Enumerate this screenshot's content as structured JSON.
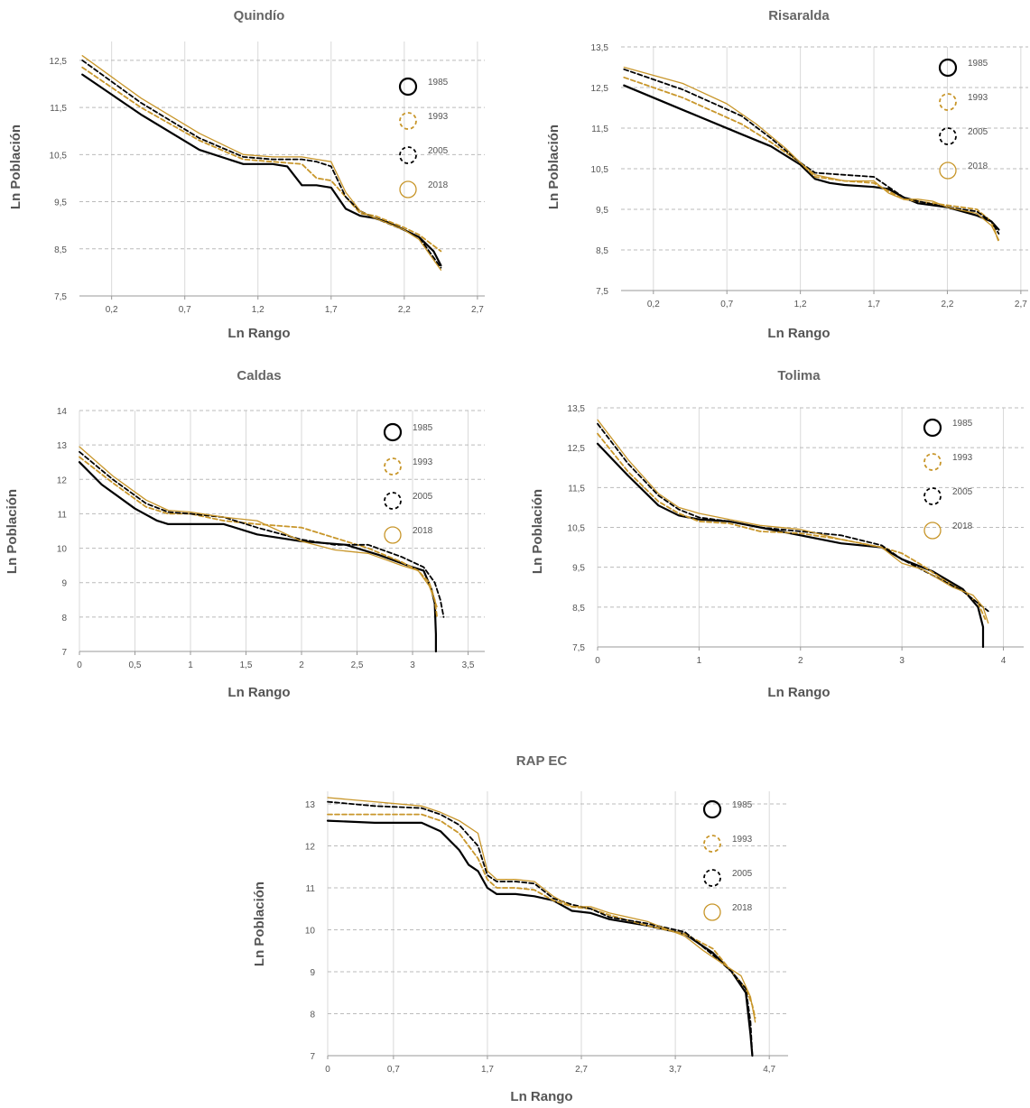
{
  "colors": {
    "s1985": "#000000",
    "s1993": "#c8962a",
    "s2005": "#000000",
    "s2018": "#c8962a",
    "grid_h": "#bbbbbb",
    "grid_v": "#d9d9d9",
    "axis": "#999999"
  },
  "chart_data": [
    {
      "type": "line",
      "title": "Quindío",
      "xlabel": "Ln Rango",
      "ylabel": "Ln Población",
      "xlim": [
        -0.02,
        2.75
      ],
      "ylim": [
        7.5,
        12.9
      ],
      "xticks": [
        0.2,
        0.7,
        1.2,
        1.7,
        2.2,
        2.7
      ],
      "xtick_labels": [
        "0,2",
        "0,7",
        "1,2",
        "1,7",
        "2,2",
        "2,7"
      ],
      "yticks": [
        7.5,
        8.5,
        9.5,
        10.5,
        11.5,
        12.5
      ],
      "ytick_labels": [
        "7,5",
        "8,5",
        "9,5",
        "10,5",
        "11,5",
        "12,5"
      ],
      "legend": "right-inside",
      "grid": true,
      "series": [
        {
          "name": "1985",
          "style": "solid-thick",
          "x": [
            0,
            0.4,
            0.8,
            1.1,
            1.3,
            1.4,
            1.5,
            1.6,
            1.7,
            1.8,
            1.9,
            2.0,
            2.1,
            2.2,
            2.3,
            2.4,
            2.45
          ],
          "y": [
            12.2,
            11.35,
            10.6,
            10.3,
            10.3,
            10.25,
            9.85,
            9.85,
            9.8,
            9.35,
            9.2,
            9.15,
            9.05,
            8.9,
            8.75,
            8.45,
            8.15
          ]
        },
        {
          "name": "1993",
          "style": "dashed",
          "x": [
            0,
            0.4,
            0.8,
            1.1,
            1.3,
            1.5,
            1.6,
            1.7,
            1.8,
            1.9,
            2.0,
            2.2,
            2.3,
            2.45
          ],
          "y": [
            12.35,
            11.5,
            10.8,
            10.4,
            10.35,
            10.3,
            10.0,
            9.95,
            9.6,
            9.25,
            9.2,
            8.95,
            8.8,
            8.45
          ]
        },
        {
          "name": "2005",
          "style": "dashed",
          "x": [
            0,
            0.4,
            0.8,
            1.1,
            1.3,
            1.5,
            1.6,
            1.7,
            1.8,
            1.9,
            2.0,
            2.2,
            2.3,
            2.45
          ],
          "y": [
            12.5,
            11.6,
            10.85,
            10.45,
            10.4,
            10.4,
            10.35,
            10.25,
            9.6,
            9.3,
            9.15,
            8.9,
            8.75,
            8.1
          ]
        },
        {
          "name": "2018",
          "style": "solid-thin",
          "x": [
            0,
            0.4,
            0.8,
            1.1,
            1.3,
            1.5,
            1.6,
            1.7,
            1.8,
            1.9,
            2.0,
            2.2,
            2.3,
            2.45
          ],
          "y": [
            12.6,
            11.7,
            10.95,
            10.5,
            10.45,
            10.45,
            10.4,
            10.35,
            9.7,
            9.3,
            9.15,
            8.9,
            8.7,
            8.05
          ]
        }
      ]
    },
    {
      "type": "line",
      "title": "Risaralda",
      "xlabel": "Ln Rango",
      "ylabel": "Ln Población",
      "xlim": [
        -0.02,
        2.75
      ],
      "ylim": [
        7.5,
        13.5
      ],
      "xticks": [
        0.2,
        0.7,
        1.2,
        1.7,
        2.2,
        2.7
      ],
      "xtick_labels": [
        "0,2",
        "0,7",
        "1,2",
        "1,7",
        "2,2",
        "2,7"
      ],
      "yticks": [
        7.5,
        8.5,
        9.5,
        10.5,
        11.5,
        12.5,
        13.5
      ],
      "ytick_labels": [
        "7,5",
        "8,5",
        "9,5",
        "10,5",
        "11,5",
        "12,5",
        "13,5"
      ],
      "legend": "top-right",
      "grid": true,
      "series": [
        {
          "name": "1985",
          "style": "solid-thick",
          "x": [
            0,
            0.4,
            0.8,
            1.0,
            1.2,
            1.3,
            1.4,
            1.5,
            1.7,
            1.8,
            1.9,
            2.0,
            2.2,
            2.4,
            2.5,
            2.55
          ],
          "y": [
            12.55,
            11.95,
            11.35,
            11.05,
            10.6,
            10.25,
            10.15,
            10.1,
            10.05,
            10.0,
            9.8,
            9.65,
            9.55,
            9.35,
            9.2,
            9.0
          ]
        },
        {
          "name": "1993",
          "style": "dashed",
          "x": [
            0,
            0.4,
            0.8,
            1.0,
            1.2,
            1.3,
            1.5,
            1.7,
            1.8,
            1.9,
            2.0,
            2.2,
            2.4,
            2.5,
            2.55
          ],
          "y": [
            12.75,
            12.25,
            11.6,
            11.15,
            10.65,
            10.3,
            10.2,
            10.15,
            9.95,
            9.75,
            9.7,
            9.6,
            9.5,
            9.2,
            8.7
          ]
        },
        {
          "name": "2005",
          "style": "dashed",
          "x": [
            0,
            0.4,
            0.8,
            1.0,
            1.2,
            1.3,
            1.5,
            1.7,
            1.8,
            1.9,
            2.0,
            2.2,
            2.4,
            2.5,
            2.55
          ],
          "y": [
            12.95,
            12.45,
            11.8,
            11.25,
            10.65,
            10.4,
            10.35,
            10.3,
            10.05,
            9.8,
            9.7,
            9.55,
            9.45,
            9.2,
            8.9
          ]
        },
        {
          "name": "2018",
          "style": "solid-thin",
          "x": [
            0,
            0.4,
            0.7,
            0.9,
            1.1,
            1.2,
            1.3,
            1.5,
            1.7,
            1.8,
            1.9,
            2.0,
            2.1,
            2.2,
            2.4,
            2.5,
            2.55
          ],
          "y": [
            13.0,
            12.6,
            12.1,
            11.6,
            11.0,
            10.65,
            10.35,
            10.2,
            10.2,
            9.9,
            9.75,
            9.75,
            9.7,
            9.55,
            9.4,
            9.1,
            8.75
          ]
        }
      ]
    },
    {
      "type": "line",
      "title": "Caldas",
      "xlabel": "Ln Rango",
      "ylabel": "Ln Población",
      "xlim": [
        0,
        3.65
      ],
      "ylim": [
        7,
        14
      ],
      "xticks": [
        0,
        0.5,
        1,
        1.5,
        2,
        2.5,
        3,
        3.5
      ],
      "xtick_labels": [
        "0",
        "0,5",
        "1",
        "1,5",
        "2",
        "2,5",
        "3",
        "3,5"
      ],
      "yticks": [
        7,
        8,
        9,
        10,
        11,
        12,
        13,
        14
      ],
      "ytick_labels": [
        "7",
        "8",
        "9",
        "10",
        "11",
        "12",
        "13",
        "14"
      ],
      "legend": "right-inside",
      "grid": true,
      "series": [
        {
          "name": "1985",
          "style": "solid-thick",
          "x": [
            0,
            0.2,
            0.5,
            0.7,
            0.8,
            1.0,
            1.3,
            1.6,
            2.0,
            2.4,
            2.7,
            3.0,
            3.1,
            3.17,
            3.2,
            3.21,
            3.21
          ],
          "y": [
            12.5,
            11.85,
            11.15,
            10.8,
            10.7,
            10.7,
            10.7,
            10.4,
            10.2,
            10.1,
            9.8,
            9.45,
            9.35,
            8.8,
            8.4,
            7.5,
            7.0
          ]
        },
        {
          "name": "1993",
          "style": "dashed",
          "x": [
            0,
            0.3,
            0.6,
            0.8,
            1.0,
            1.3,
            1.6,
            2.0,
            2.3,
            2.6,
            2.9,
            3.05,
            3.15,
            3.2,
            3.22
          ],
          "y": [
            12.65,
            11.9,
            11.2,
            11.0,
            11.0,
            10.8,
            10.7,
            10.6,
            10.3,
            10.0,
            9.6,
            9.35,
            9.0,
            8.5,
            8.0
          ]
        },
        {
          "name": "2005",
          "style": "dashed",
          "x": [
            0,
            0.3,
            0.6,
            0.8,
            1.0,
            1.3,
            1.6,
            2.0,
            2.3,
            2.6,
            2.9,
            3.1,
            3.2,
            3.25,
            3.28
          ],
          "y": [
            12.8,
            12.0,
            11.3,
            11.05,
            11.0,
            10.9,
            10.6,
            10.25,
            10.1,
            10.1,
            9.75,
            9.45,
            9.0,
            8.5,
            8.0
          ]
        },
        {
          "name": "2018",
          "style": "solid-thin",
          "x": [
            0,
            0.3,
            0.6,
            0.8,
            1.0,
            1.3,
            1.6,
            2.0,
            2.3,
            2.6,
            2.9,
            3.05,
            3.15,
            3.22
          ],
          "y": [
            12.95,
            12.1,
            11.4,
            11.1,
            11.05,
            10.9,
            10.8,
            10.2,
            9.95,
            9.85,
            9.5,
            9.35,
            8.9,
            8.3
          ]
        }
      ]
    },
    {
      "type": "line",
      "title": "Tolima",
      "xlabel": "Ln Rango",
      "ylabel": "Ln Población",
      "xlim": [
        0,
        4.2
      ],
      "ylim": [
        7.5,
        13.5
      ],
      "xticks": [
        0,
        1,
        2,
        3,
        4
      ],
      "xtick_labels": [
        "0",
        "1",
        "2",
        "3",
        "4"
      ],
      "yticks": [
        7.5,
        8.5,
        9.5,
        10.5,
        11.5,
        12.5,
        13.5
      ],
      "ytick_labels": [
        "7,5",
        "8,5",
        "9,5",
        "10,5",
        "11,5",
        "12,5",
        "13,5"
      ],
      "legend": "right-inside",
      "grid": true,
      "series": [
        {
          "name": "1985",
          "style": "solid-thick",
          "x": [
            0,
            0.3,
            0.6,
            0.8,
            1.0,
            1.3,
            1.6,
            2.0,
            2.4,
            2.8,
            3.0,
            3.3,
            3.6,
            3.75,
            3.8,
            3.8
          ],
          "y": [
            12.6,
            11.8,
            11.05,
            10.8,
            10.7,
            10.65,
            10.5,
            10.3,
            10.1,
            10.0,
            9.7,
            9.4,
            8.95,
            8.5,
            8.0,
            7.5
          ]
        },
        {
          "name": "1993",
          "style": "dashed",
          "x": [
            0,
            0.3,
            0.6,
            0.8,
            1.0,
            1.3,
            1.6,
            2.0,
            2.4,
            2.8,
            3.0,
            3.2,
            3.4,
            3.6,
            3.75,
            3.82
          ],
          "y": [
            12.85,
            11.9,
            11.15,
            10.85,
            10.65,
            10.6,
            10.4,
            10.35,
            10.2,
            10.0,
            9.85,
            9.55,
            9.2,
            8.9,
            8.6,
            8.2
          ]
        },
        {
          "name": "2005",
          "style": "dashed",
          "x": [
            0,
            0.3,
            0.6,
            0.8,
            1.0,
            1.3,
            1.6,
            2.0,
            2.4,
            2.8,
            3.0,
            3.3,
            3.6,
            3.75,
            3.85
          ],
          "y": [
            13.1,
            12.1,
            11.3,
            10.95,
            10.75,
            10.65,
            10.5,
            10.4,
            10.3,
            10.05,
            9.7,
            9.3,
            8.9,
            8.6,
            8.4
          ]
        },
        {
          "name": "2018",
          "style": "solid-thin",
          "x": [
            0,
            0.3,
            0.6,
            0.8,
            1.0,
            1.3,
            1.6,
            2.0,
            2.4,
            2.8,
            3.0,
            3.2,
            3.5,
            3.7,
            3.8,
            3.85
          ],
          "y": [
            13.2,
            12.2,
            11.35,
            11.0,
            10.85,
            10.7,
            10.55,
            10.45,
            10.2,
            10.0,
            9.6,
            9.45,
            9.0,
            8.8,
            8.5,
            8.1
          ]
        }
      ]
    },
    {
      "type": "line",
      "title": "RAP EC",
      "xlabel": "Ln Rango",
      "ylabel": "Ln Población",
      "xlim": [
        0,
        4.9
      ],
      "ylim": [
        7,
        13.3
      ],
      "xticks": [
        0,
        0.7,
        1.7,
        2.7,
        3.7,
        4.7
      ],
      "xtick_labels": [
        "0",
        "0,7",
        "1,7",
        "2,7",
        "3,7",
        "4,7"
      ],
      "yticks": [
        7,
        8,
        9,
        10,
        11,
        12,
        13
      ],
      "ytick_labels": [
        "7",
        "8",
        "9",
        "10",
        "11",
        "12",
        "13"
      ],
      "legend": "right-inside",
      "grid": true,
      "series": [
        {
          "name": "1985",
          "style": "solid-thick",
          "x": [
            0,
            0.5,
            1.0,
            1.2,
            1.4,
            1.5,
            1.6,
            1.7,
            1.8,
            2.0,
            2.2,
            2.4,
            2.6,
            2.8,
            3.0,
            3.4,
            3.8,
            4.1,
            4.3,
            4.45,
            4.5,
            4.52
          ],
          "y": [
            12.6,
            12.55,
            12.55,
            12.35,
            11.9,
            11.55,
            11.4,
            11.0,
            10.85,
            10.85,
            10.8,
            10.7,
            10.45,
            10.4,
            10.25,
            10.1,
            9.9,
            9.45,
            9.0,
            8.5,
            7.5,
            7.0
          ]
        },
        {
          "name": "1993",
          "style": "dashed",
          "x": [
            0,
            0.5,
            1.0,
            1.2,
            1.4,
            1.6,
            1.7,
            1.8,
            2.0,
            2.2,
            2.4,
            2.6,
            2.8,
            3.0,
            3.4,
            3.8,
            4.1,
            4.3,
            4.45,
            4.52,
            4.55
          ],
          "y": [
            12.75,
            12.75,
            12.75,
            12.6,
            12.3,
            11.7,
            11.2,
            11.0,
            11.0,
            10.95,
            10.7,
            10.55,
            10.5,
            10.35,
            10.1,
            9.9,
            9.55,
            9.0,
            8.6,
            8.2,
            7.9
          ]
        },
        {
          "name": "2005",
          "style": "dashed",
          "x": [
            0,
            0.5,
            1.0,
            1.2,
            1.4,
            1.6,
            1.7,
            1.8,
            2.0,
            2.2,
            2.4,
            2.6,
            2.8,
            3.0,
            3.4,
            3.8,
            4.1,
            4.3,
            4.45,
            4.5,
            4.52
          ],
          "y": [
            13.05,
            12.95,
            12.9,
            12.75,
            12.5,
            12.0,
            11.3,
            11.15,
            11.15,
            11.1,
            10.75,
            10.6,
            10.5,
            10.3,
            10.15,
            9.95,
            9.4,
            9.0,
            8.6,
            7.8,
            7.0
          ]
        },
        {
          "name": "2018",
          "style": "solid-thin",
          "x": [
            0,
            0.5,
            1.0,
            1.2,
            1.4,
            1.6,
            1.7,
            1.8,
            2.0,
            2.2,
            2.4,
            2.6,
            2.8,
            3.0,
            3.4,
            3.8,
            4.0,
            4.2,
            4.4,
            4.5,
            4.55
          ],
          "y": [
            13.15,
            13.05,
            12.95,
            12.8,
            12.6,
            12.3,
            11.4,
            11.2,
            11.2,
            11.15,
            10.8,
            10.55,
            10.55,
            10.4,
            10.2,
            9.85,
            9.5,
            9.2,
            8.9,
            8.4,
            7.8
          ]
        }
      ]
    }
  ]
}
